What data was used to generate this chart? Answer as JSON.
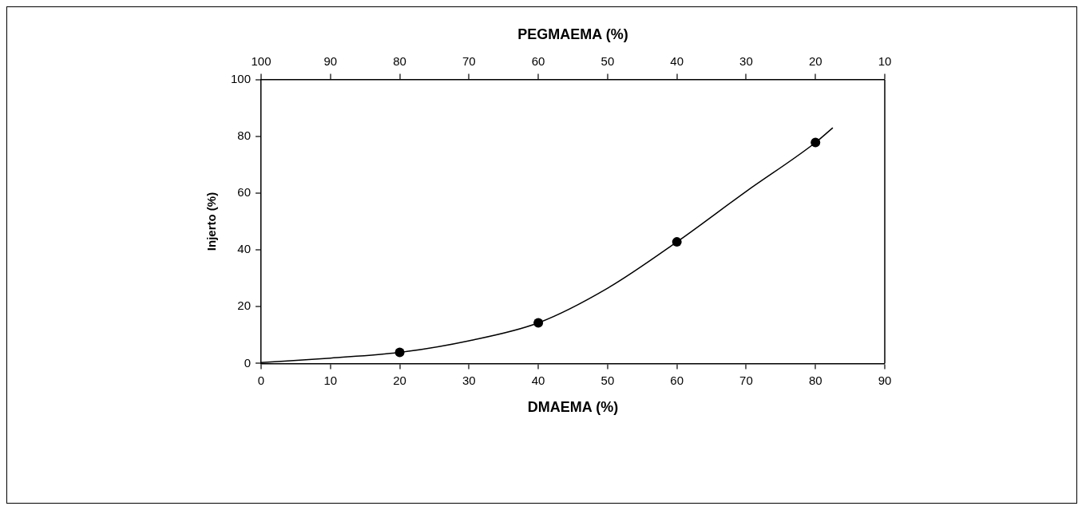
{
  "chart_data": {
    "type": "scatter",
    "xlabel": "DMAEMA (%)",
    "ylabel": "Injerto (%)",
    "x2label": "PEGMAEMA (%)",
    "xlim": [
      0,
      90
    ],
    "xticks": [
      0,
      10,
      20,
      30,
      40,
      50,
      60,
      70,
      80,
      90
    ],
    "x2lim": [
      100,
      10
    ],
    "x2ticks": [
      100,
      90,
      80,
      70,
      60,
      50,
      40,
      30,
      20,
      10
    ],
    "ylim": [
      0,
      100
    ],
    "yticks": [
      0,
      20,
      40,
      60,
      80,
      100
    ],
    "grid": false,
    "legend": false,
    "series": [
      {
        "color": "#000000",
        "marker": "circle",
        "x": [
          20,
          40,
          60,
          80
        ],
        "values": [
          3.9,
          14.3,
          42.8,
          77.8
        ]
      },
      {
        "type": "line",
        "color": "#000000",
        "marker": "none",
        "line_style": "solid",
        "x": [
          0,
          10,
          20,
          30,
          40,
          50,
          60,
          70,
          80,
          82.5
        ],
        "values": [
          0.3,
          1.9,
          3.9,
          8,
          14.3,
          26.5,
          42.8,
          60.6,
          77.8,
          83
        ]
      }
    ]
  }
}
